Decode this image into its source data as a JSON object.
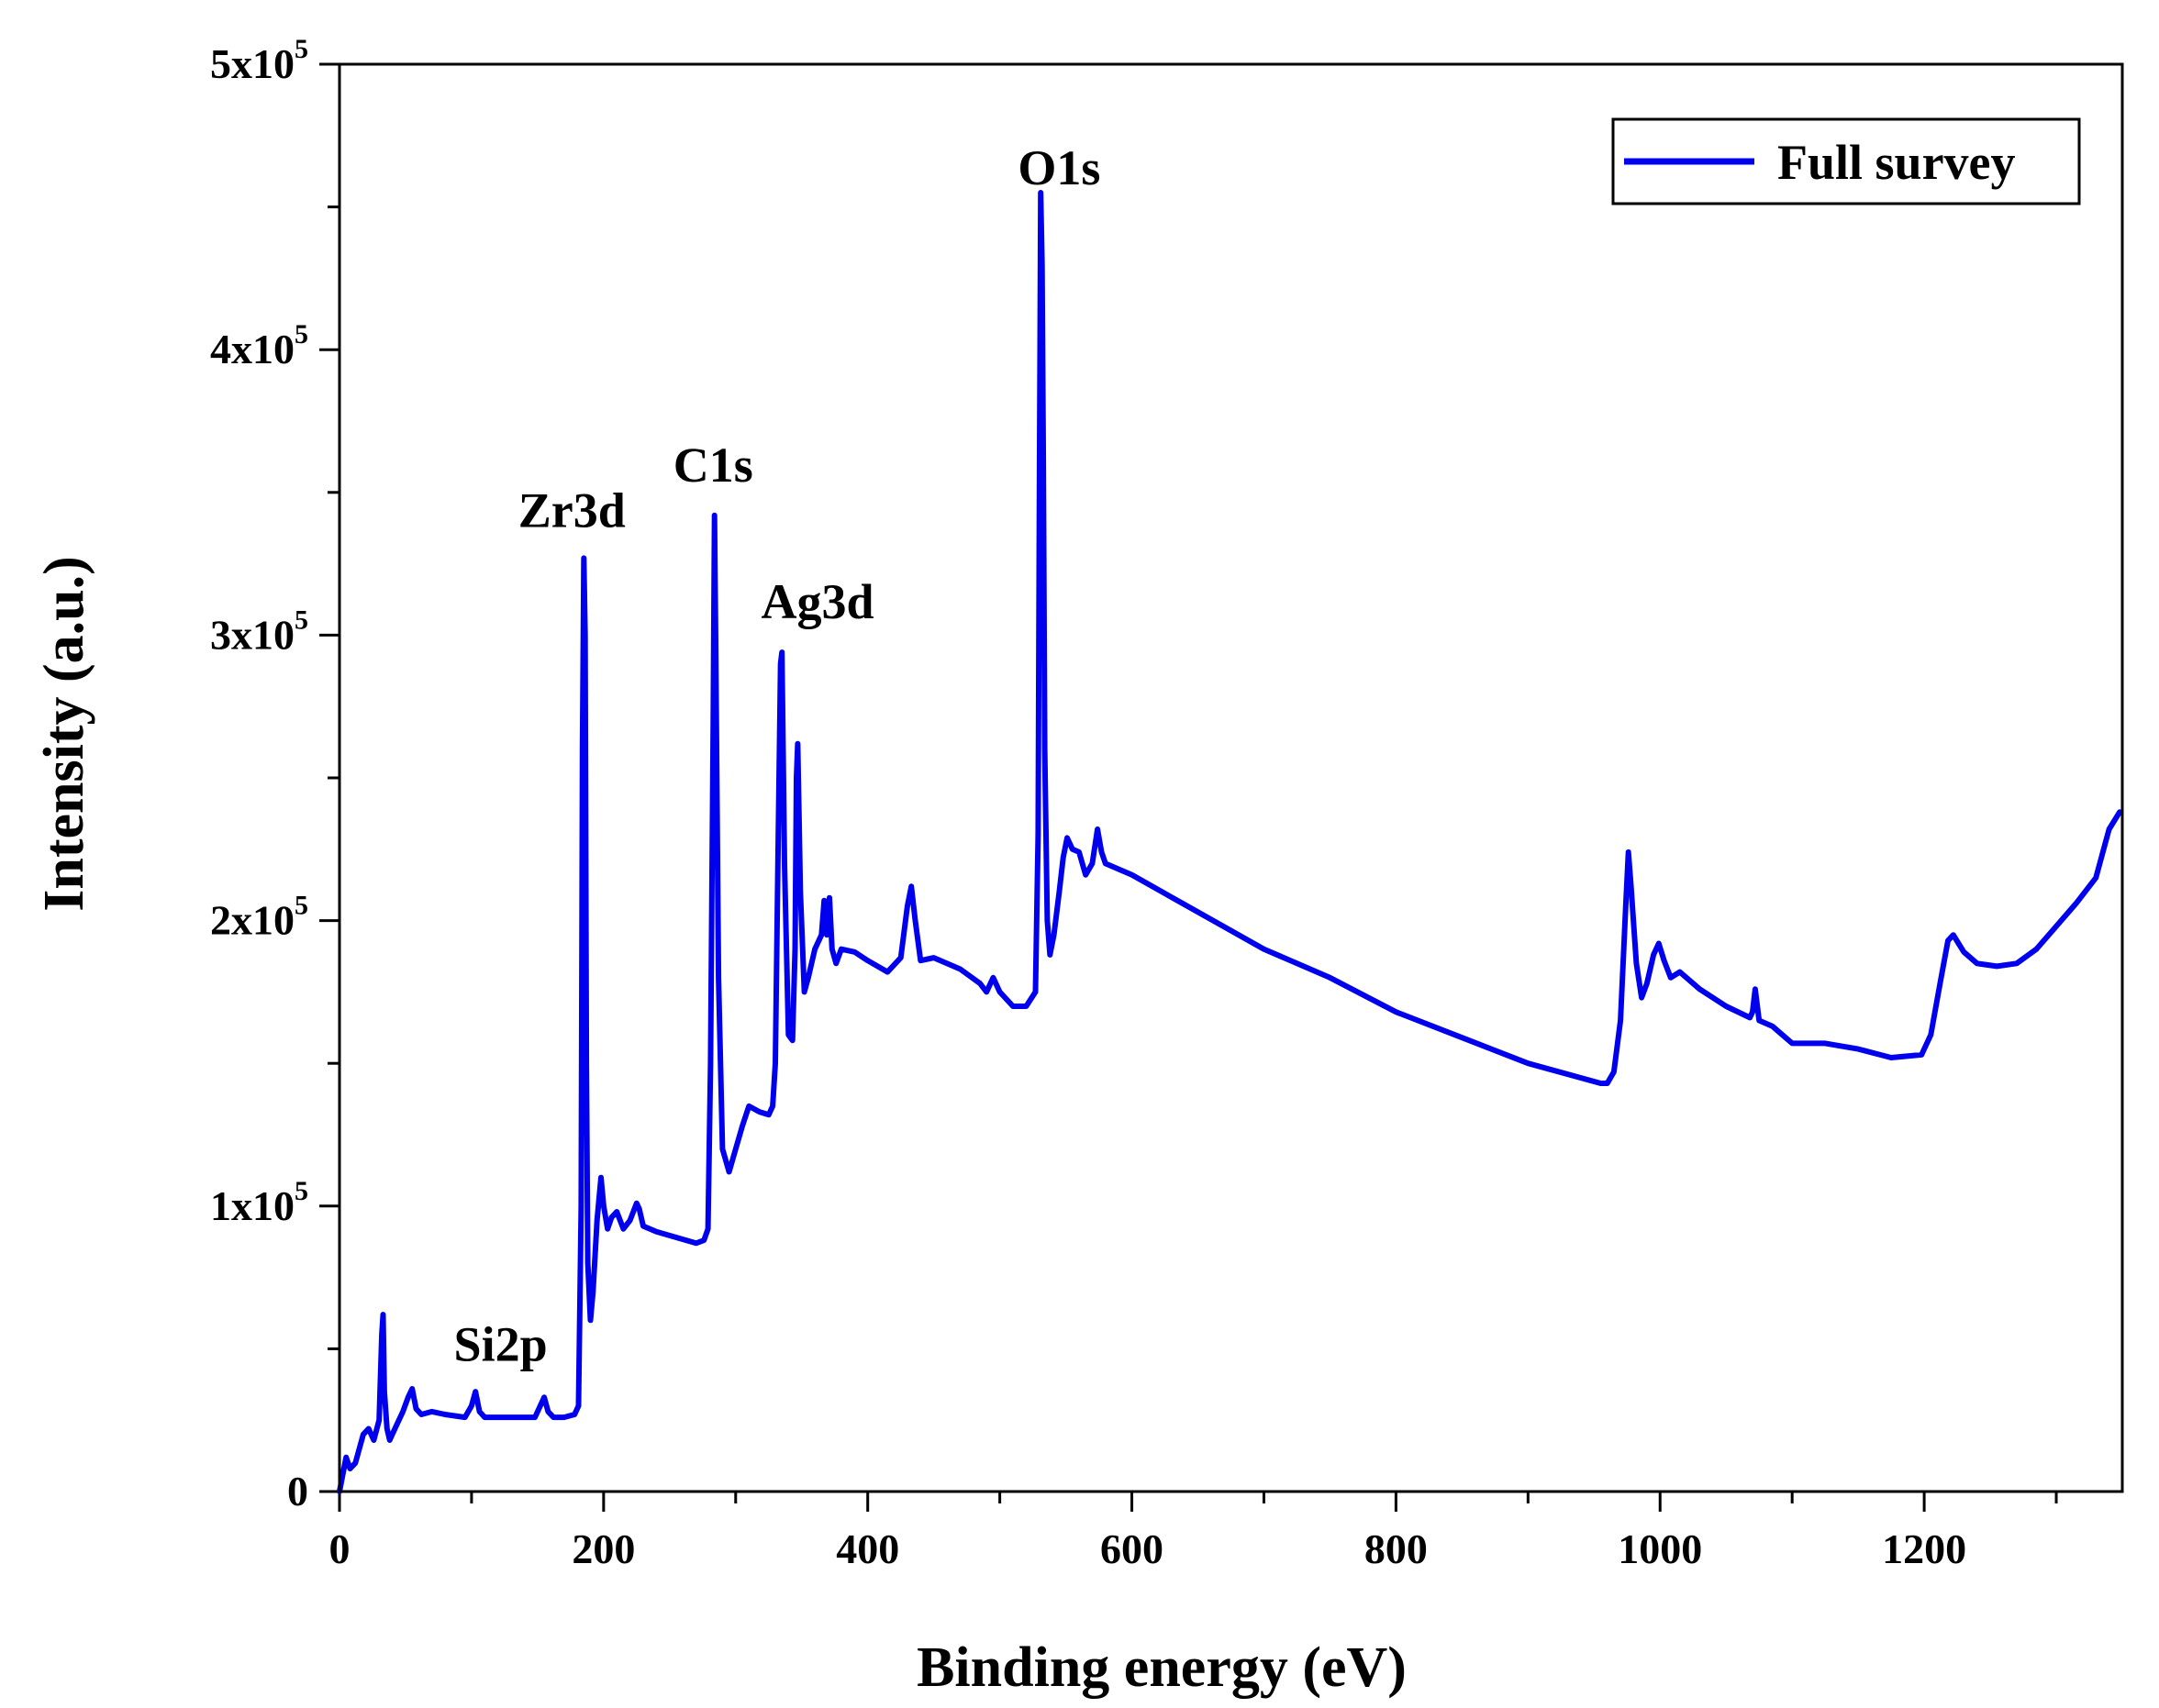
{
  "chart_data": {
    "type": "line",
    "title": "",
    "xlabel": "Binding energy (eV)",
    "ylabel": "Intensity (a.u.)",
    "xlim": [
      0,
      1350
    ],
    "ylim": [
      0,
      500000
    ],
    "grid": false,
    "legend_position": "top-right",
    "x_ticks": [
      {
        "value": 0,
        "label": "0"
      },
      {
        "value": 200,
        "label": "200"
      },
      {
        "value": 400,
        "label": "400"
      },
      {
        "value": 600,
        "label": "600"
      },
      {
        "value": 800,
        "label": "800"
      },
      {
        "value": 1000,
        "label": "1000"
      },
      {
        "value": 1200,
        "label": "1200"
      }
    ],
    "y_ticks": [
      {
        "value": 0,
        "base": "0",
        "exp": ""
      },
      {
        "value": 100000,
        "base": "1x10",
        "exp": "5"
      },
      {
        "value": 200000,
        "base": "2x10",
        "exp": "5"
      },
      {
        "value": 300000,
        "base": "3x10",
        "exp": "5"
      },
      {
        "value": 400000,
        "base": "4x10",
        "exp": "5"
      },
      {
        "value": 500000,
        "base": "5x10",
        "exp": "5"
      }
    ],
    "series": [
      {
        "name": "Full survey",
        "color": "#0000ee",
        "x": [
          0,
          5,
          8,
          12,
          18,
          22,
          26,
          30,
          32,
          33,
          34,
          36,
          38,
          42,
          48,
          52,
          55,
          58,
          62,
          70,
          80,
          95,
          100,
          103,
          106,
          110,
          120,
          135,
          148,
          152,
          155,
          158,
          162,
          170,
          178,
          181,
          183,
          184,
          185,
          186,
          187,
          188,
          190,
          192,
          195,
          198,
          200,
          203,
          206,
          210,
          215,
          220,
          225,
          227,
          230,
          240,
          255,
          270,
          276,
          279,
          281,
          283,
          284,
          285,
          287,
          290,
          295,
          300,
          305,
          310,
          318,
          325,
          328,
          330,
          332,
          334,
          335,
          337,
          340,
          343,
          345,
          346,
          347,
          349,
          352,
          355,
          360,
          365,
          367,
          369,
          371,
          373,
          376,
          380,
          390,
          400,
          415,
          425,
          430,
          433,
          436,
          440,
          450,
          470,
          485,
          490,
          495,
          500,
          510,
          520,
          527,
          529,
          530,
          531,
          532,
          533,
          534,
          536,
          538,
          541,
          545,
          548,
          551,
          555,
          560,
          565,
          570,
          574,
          577,
          580,
          600,
          650,
          700,
          750,
          800,
          850,
          900,
          955,
          960,
          965,
          970,
          974,
          976,
          978,
          982,
          986,
          990,
          995,
          999,
          1003,
          1008,
          1015,
          1030,
          1050,
          1068,
          1070,
          1072,
          1075,
          1085,
          1100,
          1125,
          1150,
          1175,
          1198,
          1205,
          1212,
          1218,
          1222,
          1226,
          1230,
          1240,
          1255,
          1270,
          1285,
          1300,
          1315,
          1330,
          1340,
          1348
        ],
        "values": [
          0,
          12000,
          8000,
          10000,
          20000,
          22000,
          18000,
          25000,
          55000,
          62000,
          35000,
          22000,
          18000,
          22000,
          28000,
          33000,
          36000,
          29000,
          27000,
          28000,
          27000,
          26000,
          30000,
          35000,
          28000,
          26000,
          26000,
          26000,
          26000,
          30000,
          33000,
          28000,
          26000,
          26000,
          27000,
          30000,
          100000,
          260000,
          327000,
          300000,
          150000,
          80000,
          60000,
          70000,
          95000,
          110000,
          100000,
          92000,
          96000,
          98000,
          92000,
          95000,
          101000,
          99000,
          93000,
          91000,
          89000,
          87000,
          88000,
          92000,
          150000,
          270000,
          342000,
          290000,
          180000,
          120000,
          112000,
          120000,
          128000,
          135000,
          133000,
          132000,
          135000,
          150000,
          220000,
          290000,
          294000,
          220000,
          160000,
          158000,
          190000,
          250000,
          262000,
          210000,
          175000,
          180000,
          190000,
          195000,
          207000,
          195000,
          208000,
          190000,
          185000,
          190000,
          189000,
          186000,
          182000,
          187000,
          205000,
          212000,
          200000,
          186000,
          187000,
          183000,
          178000,
          175000,
          180000,
          175000,
          170000,
          170000,
          175000,
          230000,
          350000,
          455000,
          430000,
          360000,
          260000,
          200000,
          188000,
          195000,
          210000,
          222000,
          229000,
          225000,
          224000,
          216000,
          220000,
          232000,
          224000,
          220000,
          216000,
          203000,
          190000,
          180000,
          168000,
          159000,
          150000,
          143000,
          143000,
          147000,
          165000,
          205000,
          224000,
          212000,
          185000,
          173000,
          178000,
          188000,
          192000,
          186000,
          180000,
          182000,
          176000,
          170000,
          166000,
          168000,
          176000,
          165000,
          163000,
          157000,
          157000,
          155000,
          152000,
          153000,
          160000,
          178000,
          193000,
          195000,
          192000,
          189000,
          185000,
          184000,
          185000,
          190000,
          198000,
          206000,
          215000,
          232000,
          238000
        ]
      }
    ],
    "annotations": [
      {
        "text": "Si2p",
        "x": 122,
        "y": 42000
      },
      {
        "text": "Zr3d",
        "x": 176,
        "y": 334000
      },
      {
        "text": "C1s",
        "x": 283,
        "y": 350000
      },
      {
        "text": "Ag3d",
        "x": 362,
        "y": 302000
      },
      {
        "text": "O1s",
        "x": 545,
        "y": 454000
      }
    ]
  }
}
